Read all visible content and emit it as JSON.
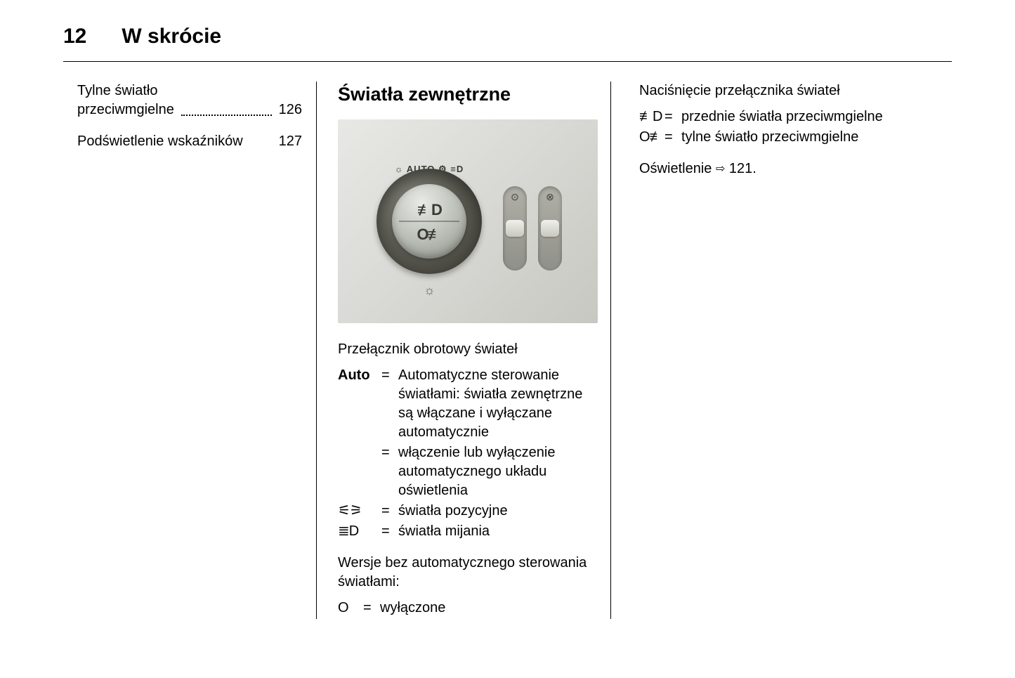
{
  "header": {
    "page_number": "12",
    "title": "W skrócie"
  },
  "col1": {
    "toc": [
      {
        "text_line1": "Tylne światło",
        "text_line2": "przeciwmgielne",
        "page": "126",
        "dotted": true
      },
      {
        "text_line1": "Podświetlenie wskaźników",
        "text_line2": "",
        "page": "127",
        "dotted": false
      }
    ]
  },
  "col2": {
    "heading": "Światła zewnętrzne",
    "image": {
      "dial_label": "☼  AUTO  ⚙  ≡D",
      "dial_top_icon": "≢D",
      "dial_bottom_icon": "O≢",
      "slider1_icon": "⊙",
      "slider2_icon": "⊗",
      "brightness_icon": "☼"
    },
    "caption1": "Przełącznik obrotowy świateł",
    "rotary_defs": [
      {
        "sym": "Auto",
        "bold": true,
        "text": "Automatyczne sterowanie światłami: światła zewnętrzne są włączane i wyłączane automatycznie"
      },
      {
        "sym": "",
        "bold": false,
        "text": "włączenie lub wyłączenie automatycznego układu oświetlenia"
      },
      {
        "sym": "⚟⚞",
        "bold": false,
        "text": "światła pozycyjne"
      },
      {
        "sym": "≣D",
        "bold": false,
        "text": "światła mijania"
      }
    ],
    "caption2": "Wersje bez automatycznego sterowania światłami:",
    "off_def": {
      "sym": "O",
      "text": "wyłączone"
    }
  },
  "col3": {
    "caption": "Naciśnięcie przełącznika świateł",
    "push_defs": [
      {
        "sym": "≢D",
        "text": "przednie światła przeciwmgielne"
      },
      {
        "sym": "O≢",
        "text": "tylne światło przeciwmgielne"
      }
    ],
    "ref_label": "Oświetlenie",
    "ref_arrow": "⇨",
    "ref_page": "121."
  }
}
